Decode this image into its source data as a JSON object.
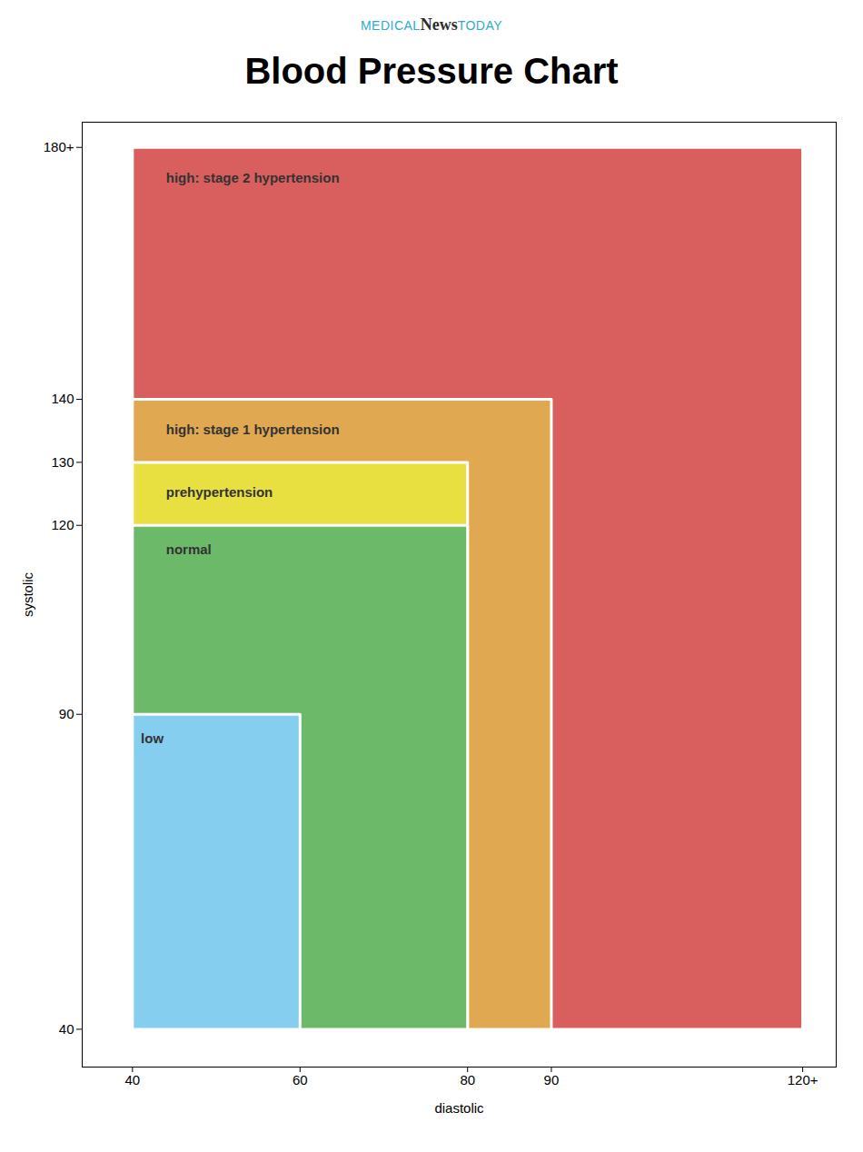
{
  "chart_data": {
    "type": "polygon",
    "title": "Blood Pressure Chart",
    "annotations": [
      {
        "text": "MEDICAL",
        "color": "#2bacd1"
      },
      {
        "text": "News",
        "color": "#2d2d2d"
      },
      {
        "text": "TODAY",
        "color": "#2bacd1"
      }
    ],
    "xlabel": "diastolic",
    "ylabel": "systolic",
    "xlim": [
      34,
      124
    ],
    "ylim": [
      34,
      184
    ],
    "xticks": [
      40,
      60,
      80,
      90,
      {
        "value": 120,
        "label": "120+"
      }
    ],
    "yticks": [
      40,
      90,
      120,
      130,
      140,
      {
        "value": 180,
        "label": "180+"
      }
    ],
    "grid": false,
    "series": [
      {
        "name": "high: stage 2 hypertension",
        "color": "#d95f5f",
        "points": [
          [
            40,
            40
          ],
          [
            120,
            40
          ],
          [
            120,
            180
          ],
          [
            40,
            180
          ]
        ],
        "label_x": 44,
        "label_y": 176
      },
      {
        "name": "high: stage 1 hypertension",
        "color": "#e0a850",
        "points": [
          [
            40,
            40
          ],
          [
            90,
            40
          ],
          [
            90,
            140
          ],
          [
            40,
            140
          ]
        ],
        "label_x": 44,
        "label_y": 136
      },
      {
        "name": "prehypertension",
        "color": "#e8e040",
        "points": [
          [
            40,
            40
          ],
          [
            80,
            40
          ],
          [
            80,
            130
          ],
          [
            40,
            130
          ]
        ],
        "label_x": 44,
        "label_y": 126
      },
      {
        "name": "normal",
        "color": "#6cb96a",
        "points": [
          [
            40,
            40
          ],
          [
            80,
            40
          ],
          [
            80,
            120
          ],
          [
            40,
            120
          ]
        ],
        "label_x": 44,
        "label_y": 117
      },
      {
        "name": "low",
        "color": "#85cef0",
        "points": [
          [
            40,
            40
          ],
          [
            60,
            40
          ],
          [
            60,
            90
          ],
          [
            40,
            90
          ]
        ],
        "label_x": 41,
        "label_y": 87
      }
    ]
  }
}
